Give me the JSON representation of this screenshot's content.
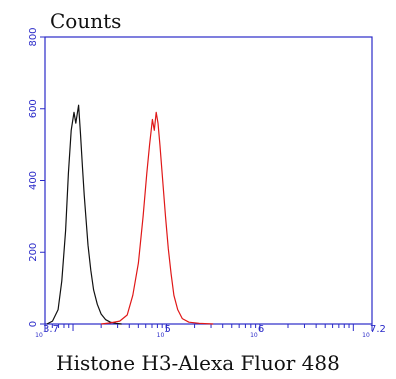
{
  "chart_data": {
    "type": "line",
    "title": "",
    "ylabel": "Counts",
    "xlabel": "Histone H3-Alexa Fluor 488",
    "x_scale": "log10",
    "xlim_exponent": [
      3.7,
      7.2
    ],
    "ylim": [
      0,
      800
    ],
    "y_ticks": [
      0,
      200,
      400,
      600,
      800
    ],
    "x_tick_labels": [
      {
        "base": "10",
        "exp": "3.7",
        "value_exp": 3.7
      },
      {
        "base": "10",
        "exp": "5",
        "value_exp": 5
      },
      {
        "base": "10",
        "exp": "6",
        "value_exp": 6
      },
      {
        "base": "10",
        "exp": "7.2",
        "value_exp": 7.2
      }
    ],
    "grid": false,
    "colors": {
      "axis": "#2a2ac8",
      "control": "#111111",
      "sample": "#e01818"
    },
    "series": [
      {
        "color": "#111111",
        "x_exp": [
          3.72,
          3.78,
          3.84,
          3.88,
          3.92,
          3.95,
          3.98,
          4.01,
          4.03,
          4.06,
          4.08,
          4.1,
          4.12,
          4.14,
          4.16,
          4.19,
          4.22,
          4.26,
          4.3,
          4.35,
          4.4,
          4.46,
          4.52
        ],
        "y": [
          0,
          8,
          40,
          120,
          260,
          420,
          540,
          590,
          560,
          610,
          530,
          440,
          360,
          290,
          220,
          150,
          95,
          55,
          28,
          12,
          5,
          2,
          0
        ]
      },
      {
        "color": "#e01818",
        "x_exp": [
          4.3,
          4.4,
          4.5,
          4.58,
          4.64,
          4.7,
          4.75,
          4.79,
          4.82,
          4.85,
          4.87,
          4.89,
          4.91,
          4.93,
          4.96,
          4.99,
          5.02,
          5.05,
          5.08,
          5.12,
          5.17,
          5.24,
          5.35,
          5.5
        ],
        "y": [
          0,
          3,
          8,
          25,
          80,
          170,
          300,
          420,
          500,
          570,
          540,
          590,
          560,
          500,
          400,
          300,
          210,
          140,
          80,
          40,
          15,
          5,
          2,
          0
        ]
      }
    ]
  }
}
